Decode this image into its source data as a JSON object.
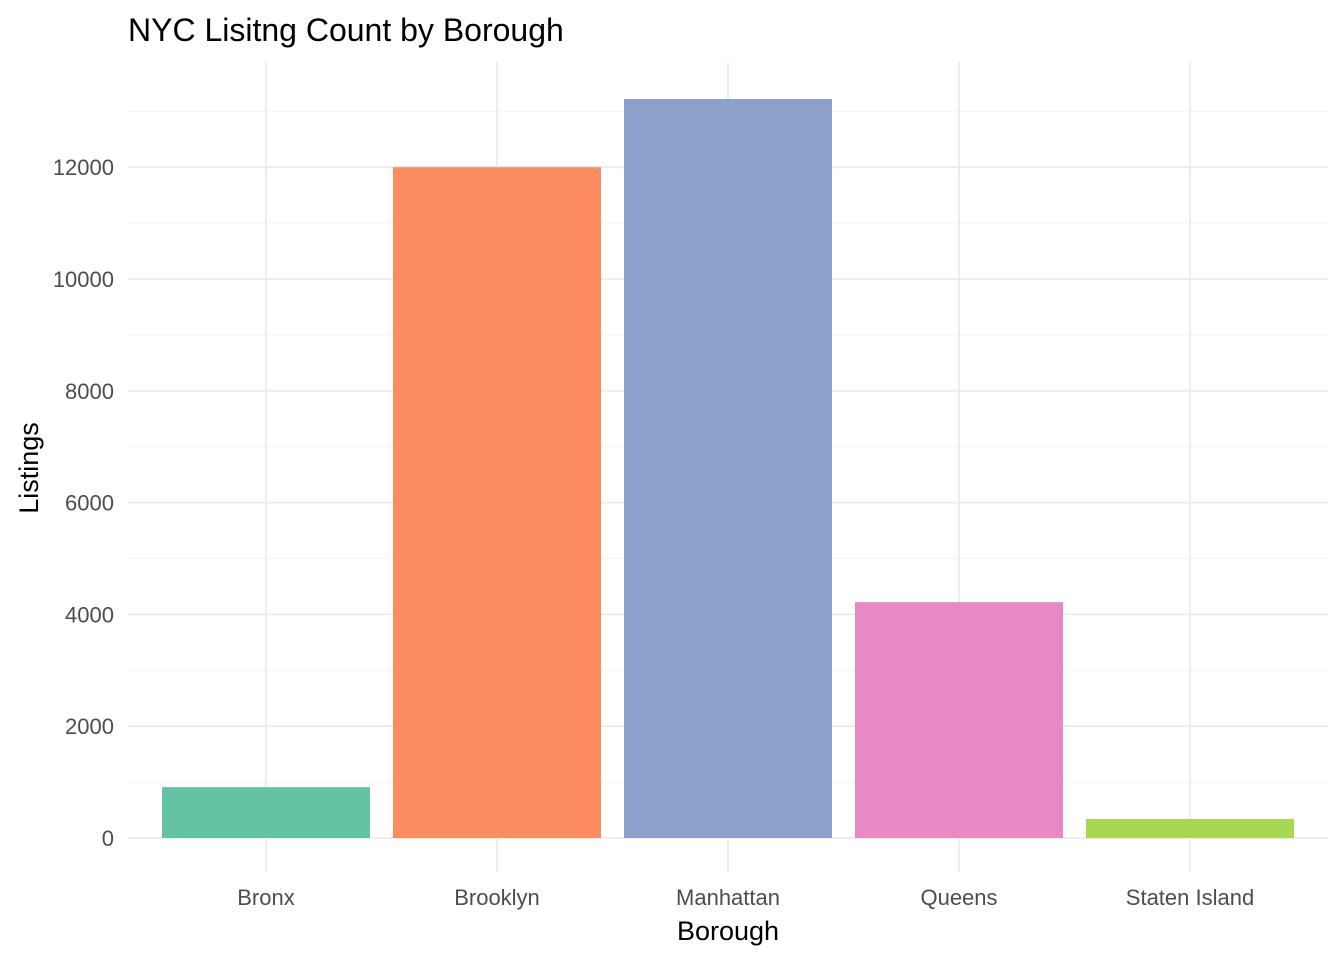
{
  "chart_data": {
    "type": "bar",
    "title": "NYC Lisitng Count by Borough",
    "xlabel": "Borough",
    "ylabel": "Listings",
    "categories": [
      "Bronx",
      "Brooklyn",
      "Manhattan",
      "Queens",
      "Staten Island"
    ],
    "values": [
      910,
      12000,
      13220,
      4220,
      340
    ],
    "colors": [
      "#66c2a5",
      "#fc8d62",
      "#8da0cb",
      "#e78ac3",
      "#a6d854"
    ],
    "ylim": [
      0,
      13220
    ],
    "yticks": [
      0,
      2000,
      4000,
      6000,
      8000,
      10000,
      12000
    ],
    "grid": true,
    "legend": "none"
  }
}
